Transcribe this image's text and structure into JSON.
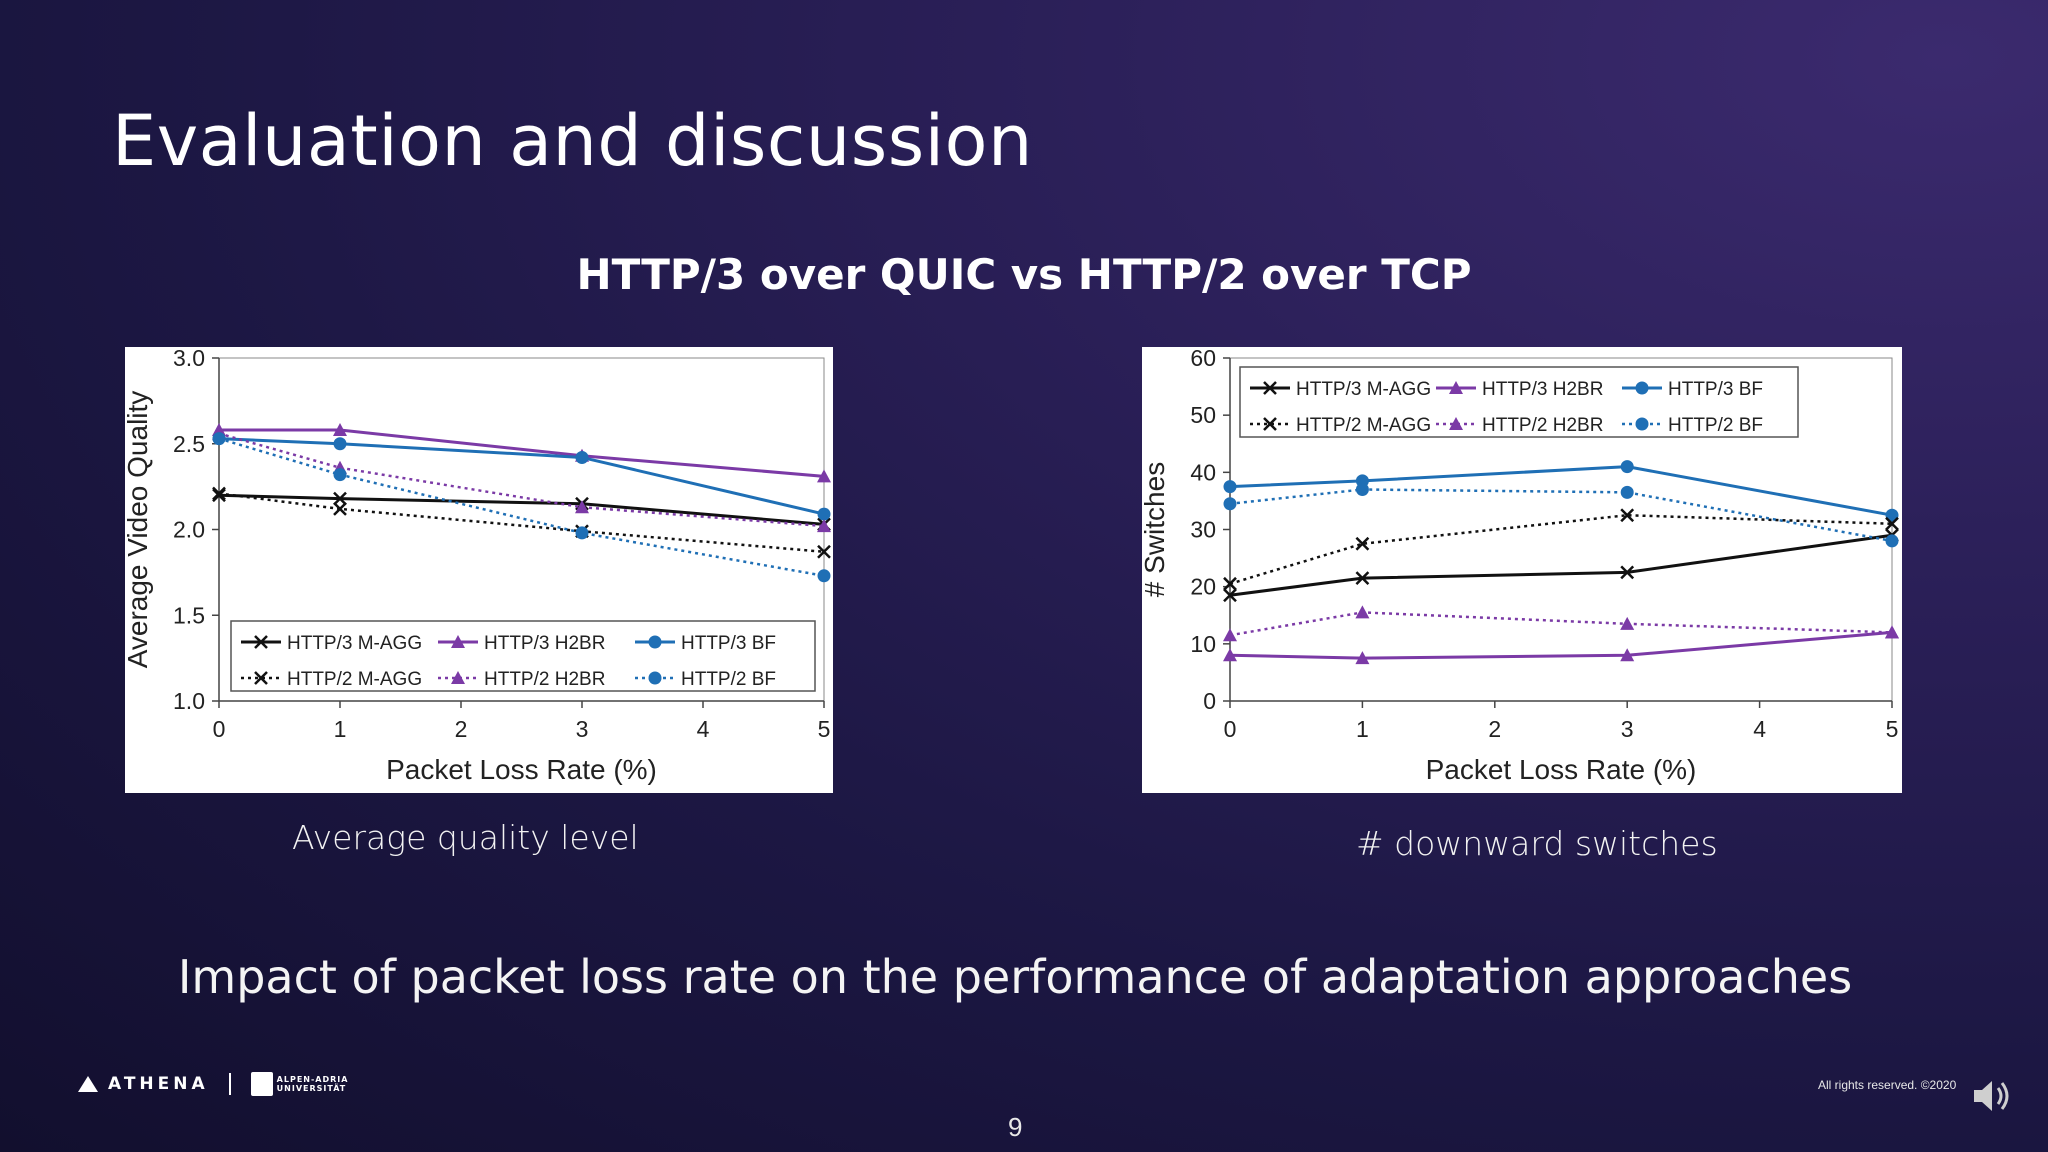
{
  "slide": {
    "title": "Evaluation and discussion",
    "subtitle": "HTTP/3 over QUIC vs HTTP/2 over TCP",
    "caption_left": "Average quality level",
    "caption_right": "# downward switches",
    "bottom_text": "Impact of packet loss rate on the performance of adaptation approaches",
    "footer_brand": "ATHENA",
    "footer_uni_line1": "ALPEN-ADRIA",
    "footer_uni_line2": "UNIVERSITÄT",
    "copyright": "All rights reserved. ©2020",
    "page_number": "9"
  },
  "colors": {
    "purple": "#7b3aa6",
    "blue": "#1f6fb5",
    "black": "#111111"
  },
  "chart_data": [
    {
      "type": "line",
      "xlabel": "Packet Loss Rate (%)",
      "ylabel": "Average Video Quality",
      "xlim": [
        0,
        5
      ],
      "ylim": [
        1.0,
        3.0
      ],
      "xticks": [
        "0",
        "1",
        "2",
        "3",
        "4",
        "5"
      ],
      "yticks": [
        "1.0",
        "1.5",
        "2.0",
        "2.5",
        "3.0"
      ],
      "legend": "bottom",
      "series": [
        {
          "name": "HTTP/3 M-AGG",
          "color": "#111111",
          "dash": false,
          "marker": "x",
          "x": [
            0,
            1,
            3,
            5
          ],
          "y": [
            2.2,
            2.18,
            2.15,
            2.03
          ]
        },
        {
          "name": "HTTP/3 H2BR",
          "color": "#7b3aa6",
          "dash": false,
          "marker": "triangle",
          "x": [
            0,
            1,
            3,
            5
          ],
          "y": [
            2.58,
            2.58,
            2.43,
            2.31
          ]
        },
        {
          "name": "HTTP/3 BF",
          "color": "#1f6fb5",
          "dash": false,
          "marker": "circle",
          "x": [
            0,
            1,
            3,
            5
          ],
          "y": [
            2.53,
            2.5,
            2.42,
            2.09
          ]
        },
        {
          "name": "HTTP/2 M-AGG",
          "color": "#111111",
          "dash": true,
          "marker": "x",
          "x": [
            0,
            1,
            3,
            5
          ],
          "y": [
            2.21,
            2.12,
            1.99,
            1.87
          ]
        },
        {
          "name": "HTTP/2 H2BR",
          "color": "#7b3aa6",
          "dash": true,
          "marker": "triangle",
          "x": [
            0,
            1,
            3,
            5
          ],
          "y": [
            2.56,
            2.36,
            2.13,
            2.02
          ]
        },
        {
          "name": "HTTP/2 BF",
          "color": "#1f6fb5",
          "dash": true,
          "marker": "circle",
          "x": [
            0,
            1,
            3,
            5
          ],
          "y": [
            2.53,
            2.32,
            1.98,
            1.73
          ]
        }
      ]
    },
    {
      "type": "line",
      "xlabel": "Packet Loss Rate (%)",
      "ylabel": "# Switches",
      "xlim": [
        0,
        5
      ],
      "ylim": [
        0,
        60
      ],
      "xticks": [
        "0",
        "1",
        "2",
        "3",
        "4",
        "5"
      ],
      "yticks": [
        "0",
        "10",
        "20",
        "30",
        "40",
        "50",
        "60"
      ],
      "legend": "top",
      "series": [
        {
          "name": "HTTP/3 M-AGG",
          "color": "#111111",
          "dash": false,
          "marker": "x",
          "x": [
            0,
            1,
            3,
            5
          ],
          "y": [
            18.5,
            21.5,
            22.5,
            29
          ]
        },
        {
          "name": "HTTP/3 H2BR",
          "color": "#7b3aa6",
          "dash": false,
          "marker": "triangle",
          "x": [
            0,
            1,
            3,
            5
          ],
          "y": [
            8,
            7.5,
            8,
            12
          ]
        },
        {
          "name": "HTTP/3 BF",
          "color": "#1f6fb5",
          "dash": false,
          "marker": "circle",
          "x": [
            0,
            1,
            3,
            5
          ],
          "y": [
            37.5,
            38.5,
            41,
            32.5
          ]
        },
        {
          "name": "HTTP/2 M-AGG",
          "color": "#111111",
          "dash": true,
          "marker": "x",
          "x": [
            0,
            1,
            3,
            5
          ],
          "y": [
            20.5,
            27.5,
            32.5,
            31
          ]
        },
        {
          "name": "HTTP/2 H2BR",
          "color": "#7b3aa6",
          "dash": true,
          "marker": "triangle",
          "x": [
            0,
            1,
            3,
            5
          ],
          "y": [
            11.5,
            15.5,
            13.5,
            12
          ]
        },
        {
          "name": "HTTP/2 BF",
          "color": "#1f6fb5",
          "dash": true,
          "marker": "circle",
          "x": [
            0,
            1,
            3,
            5
          ],
          "y": [
            34.5,
            37,
            36.5,
            28
          ]
        }
      ]
    }
  ]
}
